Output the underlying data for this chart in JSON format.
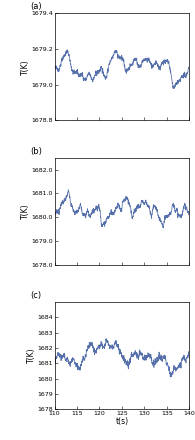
{
  "panels": [
    {
      "label": "(a)",
      "ylim": [
        1678.8,
        1679.4
      ],
      "yticks": [
        1678.8,
        1679.0,
        1679.2,
        1679.4
      ],
      "ytick_labels": [
        "1678.8",
        "1679.0",
        "1679.2",
        "1679.4"
      ],
      "mean": 1679.1,
      "amp_low": 0.08,
      "amp_high": 0.06,
      "seed": 42,
      "freqs": [
        1.5,
        3.0,
        5.5,
        8.0,
        12.0,
        20.0
      ],
      "amps": [
        0.04,
        0.03,
        0.025,
        0.02,
        0.015,
        0.01
      ]
    },
    {
      "label": "(b)",
      "ylim": [
        1678.0,
        1682.5
      ],
      "yticks": [
        1678.0,
        1679.0,
        1680.0,
        1681.0,
        1682.0
      ],
      "ytick_labels": [
        "1678.0",
        "1679.0",
        "1680.0",
        "1681.0",
        "1682.0"
      ],
      "mean": 1680.3,
      "amp_low": 0.6,
      "amp_high": 0.5,
      "seed": 7,
      "freqs": [
        2.0,
        5.0,
        9.0,
        14.0,
        22.0,
        35.0
      ],
      "amps": [
        0.25,
        0.2,
        0.18,
        0.12,
        0.08,
        0.05
      ]
    },
    {
      "label": "(c)",
      "ylim": [
        1678.0,
        1685.0
      ],
      "yticks": [
        1678,
        1679,
        1680,
        1681,
        1682,
        1683,
        1684
      ],
      "ytick_labels": [
        "1678",
        "1679",
        "1680",
        "1681",
        "1682",
        "1683",
        "1684"
      ],
      "mean": 1681.5,
      "amp_low": 1.2,
      "amp_high": 0.8,
      "seed": 13,
      "freqs": [
        1.2,
        2.8,
        5.5,
        9.0,
        16.0,
        28.0
      ],
      "amps": [
        0.5,
        0.35,
        0.25,
        0.18,
        0.12,
        0.08
      ]
    }
  ],
  "xlim": [
    110,
    140
  ],
  "xticks": [
    110,
    115,
    120,
    125,
    130,
    135,
    140
  ],
  "xlabel": "t(s)",
  "ylabel": "T(K)",
  "line_color": "#5570aa",
  "line_width": 0.55,
  "n_points": 1200,
  "figsize": [
    1.95,
    4.4
  ],
  "dpi": 100
}
